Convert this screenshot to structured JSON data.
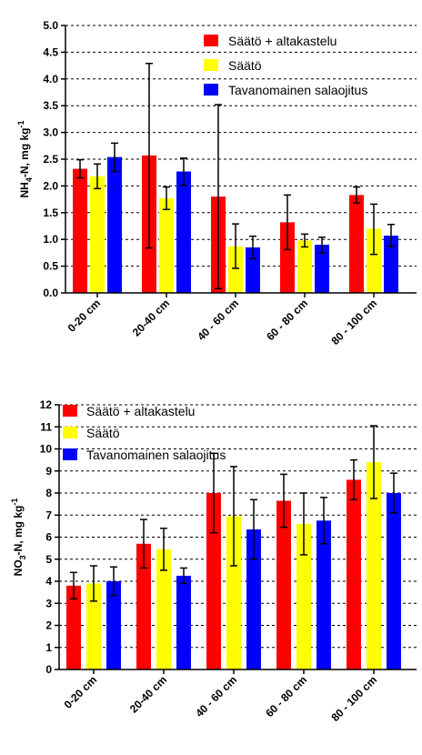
{
  "charts": [
    {
      "type": "bar",
      "ylabel_main": "NH",
      "ylabel_sub": "4",
      "ylabel_rest": "-N, mg kg",
      "ylabel_sup": "-1",
      "ylim": [
        0,
        5
      ],
      "ytick_labels": [
        "0.0",
        "0.5",
        "1.0",
        "1.5",
        "2.0",
        "2.5",
        "3.0",
        "3.5",
        "4.0",
        "4.5",
        "5.0"
      ],
      "grid": "horizontal dashed",
      "legend_position": "top-right",
      "categories": [
        "0-20 cm",
        "20-40 cm",
        "40 - 60 cm",
        "60 - 80 cm",
        "80 - 100 cm"
      ],
      "series": [
        {
          "name": "Säätö + altakastelu",
          "color": "#ff0000",
          "values": [
            2.32,
            2.57,
            1.8,
            1.32,
            1.83
          ],
          "err_low": [
            2.15,
            0.84,
            0.08,
            0.81,
            1.68
          ],
          "err_high": [
            2.49,
            4.29,
            3.52,
            1.83,
            1.98
          ]
        },
        {
          "name": "Säätö",
          "color": "#ffff00",
          "values": [
            2.18,
            1.77,
            0.87,
            0.98,
            1.2
          ],
          "err_low": [
            1.95,
            1.56,
            0.46,
            0.86,
            0.72
          ],
          "err_high": [
            2.41,
            1.98,
            1.29,
            1.1,
            1.66
          ]
        },
        {
          "name": "Tavanomainen salaojitus",
          "color": "#0000ff",
          "values": [
            2.54,
            2.27,
            0.85,
            0.9,
            1.07
          ],
          "err_low": [
            2.27,
            2.01,
            0.64,
            0.75,
            0.87
          ],
          "err_high": [
            2.8,
            2.52,
            1.06,
            1.04,
            1.28
          ]
        }
      ]
    },
    {
      "type": "bar",
      "ylabel_main": "NO",
      "ylabel_sub": "3",
      "ylabel_rest": "-N, mg kg",
      "ylabel_sup": "-1",
      "ylim": [
        0,
        12
      ],
      "ytick_labels": [
        "0",
        "1",
        "2",
        "3",
        "4",
        "5",
        "6",
        "7",
        "8",
        "9",
        "10",
        "11",
        "12"
      ],
      "grid": "horizontal dashed",
      "legend_position": "top-left",
      "categories": [
        "0-20 cm",
        "20-40 cm",
        "40 - 60 cm",
        "60 - 80 cm",
        "80 - 100 cm"
      ],
      "series": [
        {
          "name": "Säätö + altakastelu",
          "color": "#ff0000",
          "values": [
            3.8,
            5.7,
            8.0,
            7.65,
            8.6
          ],
          "err_low": [
            3.2,
            4.6,
            6.2,
            6.45,
            7.7
          ],
          "err_high": [
            4.4,
            6.8,
            9.8,
            8.85,
            9.5
          ]
        },
        {
          "name": "Säätö",
          "color": "#ffff00",
          "values": [
            3.9,
            5.45,
            6.95,
            6.6,
            9.4
          ],
          "err_low": [
            3.1,
            4.5,
            4.7,
            5.2,
            7.75
          ],
          "err_high": [
            4.7,
            6.4,
            9.2,
            8.0,
            11.05
          ]
        },
        {
          "name": "Tavanomainen salaojitus",
          "color": "#0000ff",
          "values": [
            4.0,
            4.25,
            6.35,
            6.75,
            8.0
          ],
          "err_low": [
            3.35,
            3.9,
            5.0,
            5.7,
            7.1
          ],
          "err_high": [
            4.65,
            4.6,
            7.7,
            7.8,
            8.9
          ]
        }
      ]
    }
  ]
}
